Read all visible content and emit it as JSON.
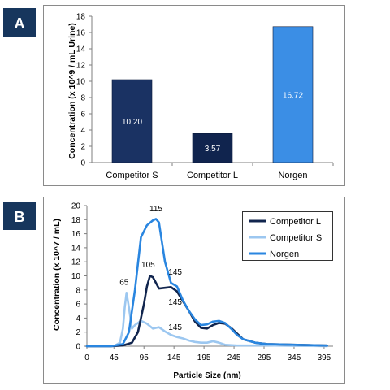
{
  "colors": {
    "badge": "#17365d",
    "competitor_s_bar": "#1a3263",
    "competitor_l_bar": "#10244e",
    "norgen_bar": "#3b8ee5",
    "competitor_l_line": "#11254e",
    "competitor_s_line": "#9cc7f0",
    "norgen_line": "#2a86e0"
  },
  "chart_data": [
    {
      "panel_label": "A",
      "type": "bar",
      "categories": [
        "Competitor S",
        "Competitor L",
        "Norgen"
      ],
      "values": [
        10.2,
        3.57,
        16.72
      ],
      "value_labels": [
        "10.20",
        "3.57",
        "16.72"
      ],
      "ylabel": "Concentration (x 10^9 / mL Urine)",
      "xlabel": "",
      "ylim": [
        0,
        18
      ],
      "yticks": [
        "0",
        "2",
        "4",
        "6",
        "8",
        "10",
        "12",
        "14",
        "16",
        "18"
      ],
      "grid": false
    },
    {
      "panel_label": "B",
      "type": "line",
      "xlabel": "Particle Size (nm)",
      "ylabel": "Concentration (x 10^7 / mL)",
      "xlim": [
        0,
        410
      ],
      "ylim": [
        0,
        20
      ],
      "xticks": [
        "0",
        "45",
        "95",
        "145",
        "195",
        "245",
        "295",
        "345",
        "395"
      ],
      "yticks": [
        "0",
        "2",
        "4",
        "6",
        "8",
        "10",
        "12",
        "14",
        "16",
        "18",
        "20"
      ],
      "legend_position": "top-right",
      "series": [
        {
          "name": "Competitor L",
          "x": [
            0,
            40,
            60,
            75,
            85,
            95,
            100,
            105,
            110,
            120,
            130,
            140,
            150,
            160,
            170,
            180,
            190,
            200,
            210,
            220,
            230,
            240,
            250,
            260,
            280,
            300,
            350,
            400
          ],
          "y": [
            0,
            0,
            0.1,
            0.5,
            2,
            6,
            8.5,
            10,
            9.8,
            8.2,
            8.3,
            8.4,
            7.8,
            6.4,
            5,
            3.5,
            2.6,
            2.5,
            3,
            3.3,
            3.2,
            2.6,
            1.8,
            1,
            0.5,
            0.3,
            0.2,
            0.1
          ]
        },
        {
          "name": "Competitor S",
          "x": [
            0,
            45,
            55,
            60,
            63,
            66,
            70,
            75,
            80,
            90,
            100,
            110,
            120,
            130,
            140,
            150,
            160,
            170,
            180,
            190,
            200,
            210,
            220,
            230,
            250,
            300,
            350,
            400
          ],
          "y": [
            0,
            0,
            0.5,
            2.5,
            5.5,
            7.6,
            5.5,
            2.5,
            3,
            3.6,
            3.2,
            2.5,
            2.7,
            2.1,
            1.6,
            1.3,
            1.1,
            0.8,
            0.6,
            0.5,
            0.5,
            0.7,
            0.5,
            0.2,
            0.1,
            0.1,
            0.05,
            0
          ]
        },
        {
          "name": "Norgen",
          "x": [
            0,
            40,
            60,
            70,
            80,
            90,
            100,
            110,
            115,
            120,
            130,
            140,
            150,
            160,
            170,
            180,
            190,
            200,
            210,
            220,
            230,
            240,
            250,
            260,
            280,
            300,
            350,
            400
          ],
          "y": [
            0,
            0,
            0.3,
            2,
            8,
            15.5,
            17.2,
            17.9,
            18.1,
            17.6,
            12,
            9,
            8.5,
            6.5,
            5,
            3.8,
            3,
            3.1,
            3.5,
            3.6,
            3.3,
            2.5,
            1.6,
            1,
            0.5,
            0.3,
            0.2,
            0.1
          ]
        }
      ],
      "annotations": [
        {
          "text": "115",
          "x": 115,
          "y": 19.2
        },
        {
          "text": "105",
          "x": 102,
          "y": 11.2
        },
        {
          "text": "145",
          "x": 147,
          "y": 10.2
        },
        {
          "text": "65",
          "x": 62,
          "y": 8.7
        },
        {
          "text": "145",
          "x": 147,
          "y": 5.9
        },
        {
          "text": "145",
          "x": 147,
          "y": 2.3
        }
      ]
    }
  ]
}
